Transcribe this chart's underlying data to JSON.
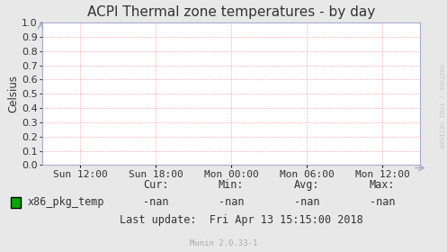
{
  "title": "ACPI Thermal zone temperatures - by day",
  "ylabel": "Celsius",
  "bg_color": "#e8e8e8",
  "plot_bg_color": "#ffffff",
  "grid_color": "#ff9999",
  "axis_color": "#aaaacc",
  "ylim": [
    0.0,
    1.0
  ],
  "yticks": [
    0.0,
    0.1,
    0.2,
    0.3,
    0.4,
    0.5,
    0.6,
    0.7,
    0.8,
    0.9,
    1.0
  ],
  "xtick_labels": [
    "Sun 12:00",
    "Sun 18:00",
    "Mon 00:00",
    "Mon 06:00",
    "Mon 12:00"
  ],
  "legend_label": "x86_pkg_temp",
  "legend_color": "#00aa00",
  "cur_label": "Cur:",
  "cur_val": "-nan",
  "min_label": "Min:",
  "min_val": "-nan",
  "avg_label": "Avg:",
  "avg_val": "-nan",
  "max_label": "Max:",
  "max_val": "-nan",
  "last_update": "Last update:  Fri Apr 13 15:15:00 2018",
  "munin_version": "Munin 2.0.33-1",
  "watermark": "RRDTOOL / TOBI OETIKER",
  "title_fontsize": 11,
  "label_fontsize": 8.5,
  "tick_fontsize": 8,
  "small_fontsize": 6.5
}
